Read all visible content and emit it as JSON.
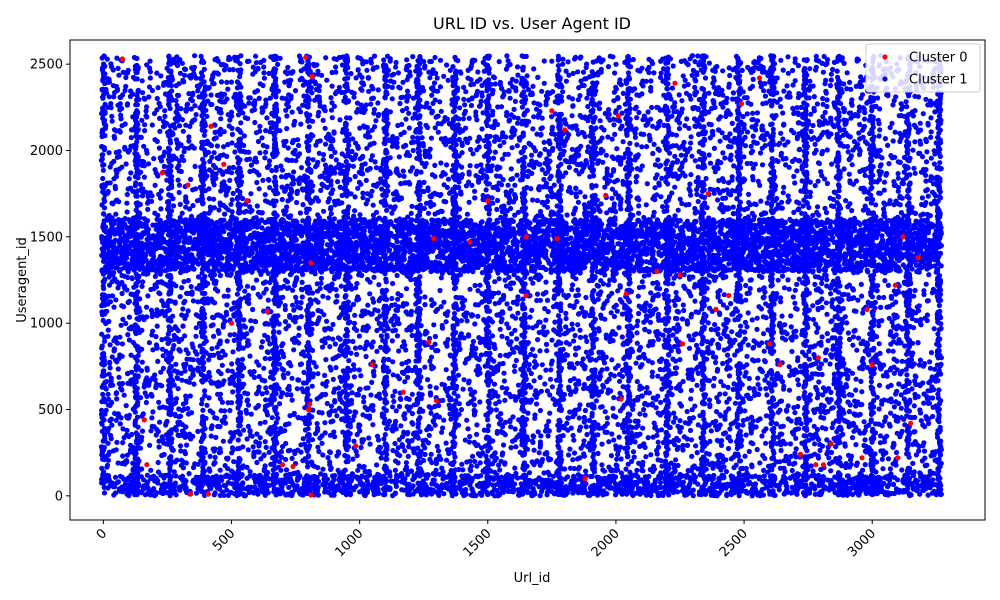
{
  "chart_data": {
    "type": "scatter",
    "title": "URL ID vs. User Agent ID",
    "xlabel": "Url_id",
    "ylabel": "Useragent_id",
    "xlim": [
      -130,
      3440
    ],
    "ylim": [
      -140,
      2640
    ],
    "xticks": [
      0,
      500,
      1000,
      1500,
      2000,
      2500,
      3000
    ],
    "yticks": [
      0,
      500,
      1000,
      1500,
      2000,
      2500
    ],
    "xtick_rotation": 45,
    "grid": false,
    "legend_position": "top-right",
    "series": [
      {
        "name": "Cluster 0",
        "color": "#ff0000",
        "points": [
          [
            75,
            2530
          ],
          [
            160,
            440
          ],
          [
            170,
            180
          ],
          [
            230,
            1870
          ],
          [
            330,
            1800
          ],
          [
            340,
            10
          ],
          [
            410,
            10
          ],
          [
            420,
            2140
          ],
          [
            470,
            1920
          ],
          [
            500,
            1000
          ],
          [
            560,
            1710
          ],
          [
            640,
            1070
          ],
          [
            700,
            180
          ],
          [
            740,
            170
          ],
          [
            790,
            2540
          ],
          [
            800,
            500
          ],
          [
            805,
            530
          ],
          [
            810,
            1350
          ],
          [
            815,
            2430
          ],
          [
            810,
            5
          ],
          [
            985,
            290
          ],
          [
            1050,
            760
          ],
          [
            1170,
            600
          ],
          [
            1270,
            890
          ],
          [
            1290,
            1490
          ],
          [
            1300,
            550
          ],
          [
            1430,
            1470
          ],
          [
            1500,
            1710
          ],
          [
            1650,
            1160
          ],
          [
            1650,
            1500
          ],
          [
            1750,
            2230
          ],
          [
            1770,
            1490
          ],
          [
            1800,
            2120
          ],
          [
            1880,
            100
          ],
          [
            1960,
            1740
          ],
          [
            2010,
            2200
          ],
          [
            2020,
            560
          ],
          [
            2040,
            1170
          ],
          [
            2160,
            1300
          ],
          [
            2230,
            2390
          ],
          [
            2250,
            1280
          ],
          [
            2260,
            880
          ],
          [
            2360,
            1750
          ],
          [
            2390,
            1080
          ],
          [
            2440,
            1160
          ],
          [
            2490,
            2270
          ],
          [
            2560,
            2420
          ],
          [
            2600,
            880
          ],
          [
            2640,
            760
          ],
          [
            2720,
            240
          ],
          [
            2780,
            180
          ],
          [
            2790,
            800
          ],
          [
            2810,
            180
          ],
          [
            2840,
            300
          ],
          [
            2960,
            220
          ],
          [
            2980,
            1080
          ],
          [
            3000,
            760
          ],
          [
            3090,
            1220
          ],
          [
            3100,
            220
          ],
          [
            3120,
            1500
          ],
          [
            3150,
            420
          ],
          [
            3180,
            1380
          ]
        ]
      },
      {
        "name": "Cluster 1",
        "color": "#0000ff",
        "points": []
      }
    ]
  }
}
